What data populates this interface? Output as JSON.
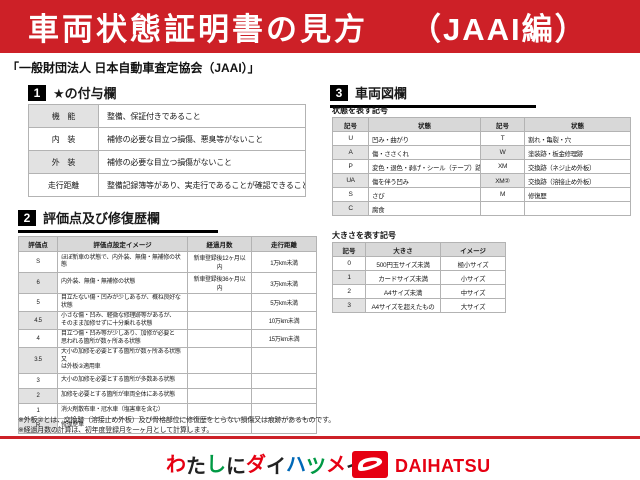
{
  "banner": {
    "title": "車両状態証明書の見方",
    "edition": "（JAAI編）"
  },
  "subtitle": "「一般財団法人 日本自動車査定協会（JAAI）」",
  "sections": {
    "award": {
      "num": "1",
      "title": "★の付与欄"
    },
    "evaluation": {
      "num": "2",
      "title": "評価点及び修復歴欄"
    },
    "diagram": {
      "num": "3",
      "title": "車両図欄"
    }
  },
  "award_table": {
    "rows": [
      [
        "機　能",
        "整備、保証付きであること"
      ],
      [
        "内　装",
        "補修の必要な目立つ損傷、悪臭等がないこと"
      ],
      [
        "外　装",
        "補修の必要な目立つ損傷がないこと"
      ],
      [
        "走行距離",
        "整備記録簿等があり、実走行であることが確認できること"
      ]
    ],
    "shade_rows": [
      0,
      2
    ],
    "shade_cols": [
      0
    ]
  },
  "evaluation_table": {
    "headers": [
      "評価点",
      "評価点設定イメージ",
      "経過月数",
      "走行距離"
    ],
    "rows": [
      [
        "S",
        "ほぼ新車の状態で、内外装、無傷・無補修の状態",
        "新車登録後12ヶ月以内",
        "1万km未満"
      ],
      [
        "6",
        "内外装、無傷・無補修の状態",
        "新車登録後36ヶ月以内",
        "3万km未満"
      ],
      [
        "5",
        "目立たない傷・凹みが少しあるが、概ね良好な状態",
        "",
        "5万km未満"
      ],
      [
        "4.5",
        "小さな傷・凹み、軽微な修理跡等があるが、\nそのまま加修せずに十分乗れる状態",
        "",
        "10万km未満"
      ],
      [
        "4",
        "目立つ傷・凹み等が少しあり、加修が必要と\n思われる箇所が数ヶ所ある状態",
        "",
        "15万km未満"
      ],
      [
        "3.5",
        "大小の加修を必要とする箇所が数ヶ所ある状態又\nは外板②適用車",
        "",
        ""
      ],
      [
        "3",
        "大小の加修を必要とする箇所が多数ある状態",
        "",
        ""
      ],
      [
        "2",
        "加修を必要とする箇所が車両全体にある状態",
        "",
        ""
      ],
      [
        "1",
        "消火剤散布車・冠水車（塩害車を含む）",
        "",
        ""
      ],
      [
        "R",
        "修復歴車",
        "",
        ""
      ]
    ],
    "shade_rows": [
      1,
      3,
      5,
      7,
      9
    ],
    "shade_cols": [
      0
    ]
  },
  "condition_symbols": {
    "label": "状態を表す記号",
    "headers": [
      "記号",
      "状態",
      "記号",
      "状態"
    ],
    "rows": [
      [
        "U",
        "凹み・曲がり",
        "T",
        "割れ・亀裂・穴"
      ],
      [
        "A",
        "傷・ささくれ",
        "W",
        "塗装跡・板金修理跡"
      ],
      [
        "P",
        "変色・退色・剥げ・シール（テープ）跡",
        "XM",
        "交換跡（ネジ止め外板）"
      ],
      [
        "UA",
        "傷を伴う凹み",
        "XM②",
        "交換跡（溶接止め外板）"
      ],
      [
        "S",
        "さび",
        "M",
        "修復歴"
      ],
      [
        "C",
        "腐食",
        "",
        ""
      ]
    ],
    "shade_rows": [
      1,
      3,
      5
    ],
    "shade_cols": [
      0,
      2
    ]
  },
  "size_symbols": {
    "label": "大きさを表す記号",
    "headers": [
      "記号",
      "大きさ",
      "イメージ"
    ],
    "rows": [
      [
        "0",
        "500円玉サイズ未満",
        "極小サイズ"
      ],
      [
        "1",
        "カードサイズ未満",
        "小サイズ"
      ],
      [
        "2",
        "A4サイズ未満",
        "中サイズ"
      ],
      [
        "3",
        "A4サイズを超えたもの",
        "大サイズ"
      ]
    ],
    "shade_rows": [
      1,
      3
    ],
    "shade_cols": [
      0
    ]
  },
  "notes": [
    "※外板②とは、交換跡（溶接止め外板）及び骨格部位に修復歴をとらない損傷又は痕跡があるものです。",
    "※経過月数の計算は、初年度登録月を一ヶ月として計算します。"
  ],
  "footer": {
    "slogan_chars": [
      {
        "c": "わ",
        "color": "#e60012"
      },
      {
        "c": "た",
        "color": "#222222"
      },
      {
        "c": "し",
        "color": "#009944"
      },
      {
        "c": "に",
        "color": "#222222"
      },
      {
        "c": "ダ",
        "color": "#e60012"
      },
      {
        "c": "イ",
        "color": "#222222"
      },
      {
        "c": "ハ",
        "color": "#0068b7"
      },
      {
        "c": "ツ",
        "color": "#009944"
      },
      {
        "c": "メ",
        "color": "#e60012"
      },
      {
        "c": "イ",
        "color": "#222222"
      },
      {
        "c": "。",
        "color": "#e60012"
      }
    ],
    "brand": "DAIHATSU"
  },
  "colors": {
    "banner_red": "#cd2027",
    "brand_red": "#e60012",
    "header_gray": "#d8d8d8"
  }
}
